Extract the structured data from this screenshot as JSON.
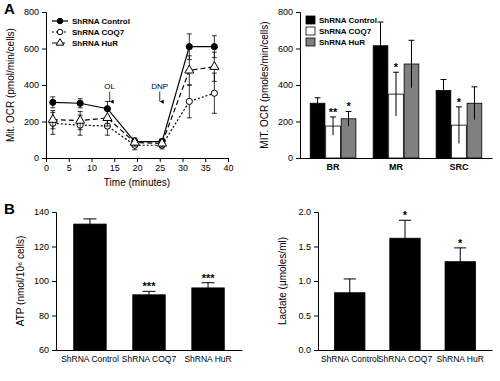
{
  "chart_data": [
    {
      "type": "line",
      "panel": "A",
      "x_label": "Time (minutes)",
      "y_label": "Mit. OCR (pmol/min/cells)",
      "x": [
        1.5,
        7.5,
        13.5,
        19.5,
        25.5,
        31.5,
        37
      ],
      "xlim": [
        0,
        40
      ],
      "xticks": [
        0,
        5,
        10,
        15,
        20,
        25,
        30,
        35,
        40
      ],
      "ylim": [
        0,
        800
      ],
      "yticks": [
        0,
        200,
        400,
        600,
        800
      ],
      "legend": "upper left",
      "annotations": [
        {
          "text": "OL",
          "x": 14,
          "y": 380
        },
        {
          "text": "DNP",
          "x": 25,
          "y": 380
        }
      ],
      "series": [
        {
          "name": "ShRNA Control",
          "color": "#000000",
          "marker": "circle",
          "line_style": "solid",
          "values": [
            305,
            300,
            270,
            90,
            90,
            610,
            610
          ],
          "error": [
            30,
            25,
            40,
            20,
            15,
            70,
            60
          ]
        },
        {
          "name": "ShRNA COQ7",
          "color": "#000000",
          "marker": "open-circle",
          "line_style": "dotted",
          "values": [
            190,
            180,
            175,
            70,
            70,
            310,
            355
          ],
          "error": [
            60,
            55,
            50,
            25,
            20,
            90,
            110
          ]
        },
        {
          "name": "ShRNA HuR",
          "color": "#000000",
          "marker": "open-triangle",
          "line_style": "dashed",
          "values": [
            210,
            205,
            220,
            85,
            80,
            480,
            500
          ],
          "error": [
            50,
            50,
            45,
            20,
            20,
            80,
            80
          ]
        }
      ]
    },
    {
      "type": "bar",
      "y_label": "MIT. OCR (pmoles/min/cells)",
      "categories": [
        "BR",
        "MR",
        "SRC"
      ],
      "ylim": [
        0,
        800
      ],
      "yticks": [
        0,
        200,
        400,
        600,
        800
      ],
      "legend": "upper left",
      "series": [
        {
          "name": "ShRNA Control",
          "color": "#000000",
          "values": [
            300,
            615,
            370
          ],
          "error": [
            30,
            130,
            60
          ]
        },
        {
          "name": "ShRNA COQ7",
          "color": "#ffffff",
          "values": [
            175,
            350,
            180
          ],
          "error": [
            50,
            120,
            100
          ]
        },
        {
          "name": "ShRNA HuR",
          "color": "#808080",
          "values": [
            215,
            515,
            300
          ],
          "error": [
            40,
            130,
            90
          ]
        }
      ],
      "annotations": [
        {
          "text": "**",
          "category": "BR",
          "series": "ShRNA COQ7"
        },
        {
          "text": "*",
          "category": "BR",
          "series": "ShRNA HuR"
        },
        {
          "text": "*",
          "category": "MR",
          "series": "ShRNA COQ7"
        },
        {
          "text": "*",
          "category": "SRC",
          "series": "ShRNA COQ7"
        }
      ]
    },
    {
      "type": "bar",
      "panel": "B",
      "y_label": "ATP (nmol/10⁶ cells)",
      "categories": [
        "ShRNA Control",
        "ShRNA COQ7",
        "ShRNA HuR"
      ],
      "values": [
        133,
        92,
        96
      ],
      "error": [
        3,
        2,
        3
      ],
      "color": "#000000",
      "ylim": [
        60,
        140
      ],
      "yticks": [
        60,
        80,
        100,
        120,
        140
      ],
      "annotations": [
        {
          "text": "***",
          "category": "ShRNA COQ7"
        },
        {
          "text": "***",
          "category": "ShRNA HuR"
        }
      ]
    },
    {
      "type": "bar",
      "y_label": "Lactate (μmoles/ml)",
      "categories": [
        "ShRNA Control",
        "ShRNA COQ7",
        "ShRNA HuR"
      ],
      "values": [
        0.83,
        1.62,
        1.28
      ],
      "error": [
        0.2,
        0.26,
        0.2
      ],
      "color": "#000000",
      "ylim": [
        0,
        2
      ],
      "yticks": [
        {
          "value": 0,
          "label": "0.0"
        },
        0.5,
        {
          "value": 1,
          "label": "1.0"
        },
        1.5,
        {
          "value": 2,
          "label": "2.0"
        }
      ],
      "annotations": [
        {
          "text": "*",
          "category": "ShRNA COQ7"
        },
        {
          "text": "*",
          "category": "ShRNA HuR"
        }
      ]
    }
  ]
}
